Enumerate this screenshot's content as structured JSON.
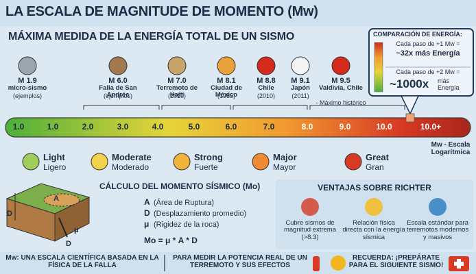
{
  "header": {
    "title": "LA ESCALA DE MAGNITUDE DE MOMENTO (Mw)",
    "subtitle": "MÁXIMA MEDIDA DE LA ENERGÍA TOTAL DE UN SISMO"
  },
  "energy_comparison": {
    "title": "COMPARACIÓN DE ENERGÍA:",
    "steps": [
      {
        "step": "Cada paso de +1 Mw =",
        "result": "~32x más Energía"
      },
      {
        "step": "Cada paso de +2 Mw =",
        "result": "~1000x",
        "unit": "más Energía"
      }
    ]
  },
  "events": [
    {
      "magnitude": "M 1.9",
      "name": "micro-sismo",
      "detail": "(ejemplos)"
    },
    {
      "magnitude": "M 6.0",
      "name": "Falla de San Andrés",
      "detail": "(ejemplos)"
    },
    {
      "magnitude": "M 7.0",
      "name": "Terremoto de Haití",
      "detail": "(2010)"
    },
    {
      "magnitude": "M 8.1",
      "name": "Ciudad de México",
      "detail": "(1985)"
    },
    {
      "magnitude": "M 8.8",
      "name": "Chile",
      "detail": "(2010)"
    },
    {
      "magnitude": "M 9.1",
      "name": "Japón",
      "detail": "(2011)"
    },
    {
      "magnitude": "M 9.5",
      "name": "Valdivia, Chile",
      "detail": "- Máximo histórico"
    }
  ],
  "scale": {
    "labels": [
      "1.0",
      "1.0",
      "2.0",
      "3.0",
      "4.0",
      "5.0",
      "6.0",
      "7.0",
      "8.0",
      "9.0",
      "10.0",
      "10.0+"
    ],
    "caption": "Mw - Escala Logarítmica"
  },
  "categories": [
    {
      "en": "Light",
      "es": "Ligero"
    },
    {
      "en": "Moderate",
      "es": "Moderado"
    },
    {
      "en": "Strong",
      "es": "Fuerte"
    },
    {
      "en": "Major",
      "es": "Mayor"
    },
    {
      "en": "Great",
      "es": "Gran"
    }
  ],
  "moment": {
    "title": "CÁLCULO DEL MOMENTO SÍSMICO (Mo)",
    "diagram_labels": [
      "A",
      "D",
      "μ",
      "D"
    ],
    "terms": [
      {
        "symbol": "A",
        "description": "(Área de Ruptura)"
      },
      {
        "symbol": "D",
        "description": "(Desplazamiento promedio)"
      },
      {
        "symbol": "μ",
        "description": "(Rigidez de la roca)"
      }
    ],
    "formula": "Mo = μ * A * D"
  },
  "advantages": {
    "title": "VENTAJAS SOBRE RICHTER",
    "items": [
      "Cubre sismos de magnitud extrema (>8.3)",
      "Relación física directa con la energía sísmica",
      "Escala estándar para terremotos modernos y masivos"
    ]
  },
  "footer": {
    "left": "Mw: UNA ESCALA CIENTÍFICA BASADA EN LA FÍSICA DE LA FALLA",
    "center": "PARA MEDIR LA POTENCIA REAL DE UN TERREMOTO Y SUS EFECTOS",
    "right": "RECUERDA: ¡PREPÁRATE PARA EL SIGUIENTE SISMO!"
  }
}
